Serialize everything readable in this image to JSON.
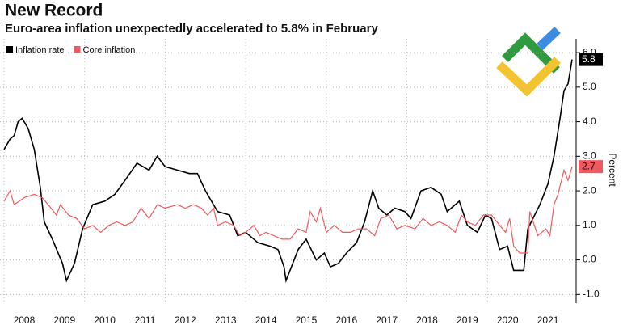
{
  "chart_data": {
    "type": "line",
    "title": "New Record",
    "subtitle": "Euro-area inflation unexpectedly accelerated to 5.8% in February",
    "y_label": "Percent",
    "xlim": [
      2007.9,
      2022.2
    ],
    "ylim": [
      -1.25,
      6.4
    ],
    "xticks": [
      {
        "value": 2008,
        "label": "2008"
      },
      {
        "value": 2009,
        "label": "2009"
      },
      {
        "value": 2010,
        "label": "2010"
      },
      {
        "value": 2011,
        "label": "2011"
      },
      {
        "value": 2012,
        "label": "2012"
      },
      {
        "value": 2013,
        "label": "2013"
      },
      {
        "value": 2014,
        "label": "2014"
      },
      {
        "value": 2015,
        "label": "2015"
      },
      {
        "value": 2016,
        "label": "2016"
      },
      {
        "value": 2017,
        "label": "2017"
      },
      {
        "value": 2018,
        "label": "2018"
      },
      {
        "value": 2019,
        "label": "2019"
      },
      {
        "value": 2020,
        "label": "2020"
      },
      {
        "value": 2021,
        "label": "2021"
      }
    ],
    "yticks": [
      {
        "value": 6,
        "label": "6.0"
      },
      {
        "value": 5,
        "label": "5.0"
      },
      {
        "value": 4,
        "label": "4.0"
      },
      {
        "value": 3,
        "label": "3.0"
      },
      {
        "value": 2,
        "label": "2.0"
      },
      {
        "value": 1,
        "label": "1.0"
      },
      {
        "value": 0,
        "label": "0.0"
      },
      {
        "value": -1,
        "label": "-1.0"
      }
    ],
    "grid": true,
    "legend": "top-left",
    "series": [
      {
        "name": "Inflation rate",
        "color": "#000000",
        "x": [
          2008.0,
          2008.15,
          2008.25,
          2008.35,
          2008.45,
          2008.6,
          2008.75,
          2008.9,
          2009.0,
          2009.2,
          2009.45,
          2009.55,
          2009.75,
          2009.95,
          2010.2,
          2010.5,
          2010.75,
          2011.0,
          2011.3,
          2011.6,
          2011.8,
          2012.0,
          2012.3,
          2012.6,
          2012.8,
          2013.0,
          2013.3,
          2013.6,
          2013.8,
          2014.0,
          2014.3,
          2014.6,
          2014.8,
          2014.95,
          2015.0,
          2015.3,
          2015.5,
          2015.75,
          2015.95,
          2016.1,
          2016.3,
          2016.5,
          2016.75,
          2016.95,
          2017.15,
          2017.3,
          2017.5,
          2017.7,
          2017.95,
          2018.1,
          2018.35,
          2018.6,
          2018.85,
          2019.0,
          2019.3,
          2019.5,
          2019.75,
          2019.95,
          2020.1,
          2020.3,
          2020.5,
          2020.65,
          2020.9,
          2021.0,
          2021.3,
          2021.5,
          2021.65,
          2021.8,
          2021.9,
          2022.0,
          2022.1
        ],
        "values": [
          3.2,
          3.5,
          3.6,
          4.0,
          4.1,
          3.8,
          3.2,
          2.1,
          1.1,
          0.6,
          -0.1,
          -0.6,
          -0.1,
          0.9,
          1.6,
          1.7,
          1.9,
          2.3,
          2.8,
          2.6,
          3.0,
          2.7,
          2.6,
          2.5,
          2.5,
          2.0,
          1.4,
          1.3,
          0.7,
          0.8,
          0.5,
          0.4,
          0.3,
          -0.2,
          -0.6,
          0.3,
          0.6,
          0.0,
          0.2,
          -0.2,
          -0.1,
          0.2,
          0.5,
          1.1,
          2.0,
          1.5,
          1.3,
          1.5,
          1.4,
          1.2,
          2.0,
          2.1,
          1.9,
          1.4,
          1.7,
          1.0,
          0.8,
          1.3,
          1.2,
          0.3,
          0.4,
          -0.3,
          -0.3,
          0.9,
          1.6,
          2.2,
          3.0,
          4.1,
          4.9,
          5.1,
          5.8
        ]
      },
      {
        "name": "Core inflation",
        "color": "#f0595f",
        "x": [
          2008.0,
          2008.15,
          2008.25,
          2008.5,
          2008.75,
          2008.95,
          2009.1,
          2009.3,
          2009.4,
          2009.6,
          2009.8,
          2010.0,
          2010.2,
          2010.4,
          2010.6,
          2010.8,
          2011.0,
          2011.2,
          2011.4,
          2011.6,
          2011.8,
          2012.0,
          2012.3,
          2012.5,
          2012.7,
          2012.9,
          2013.05,
          2013.2,
          2013.3,
          2013.5,
          2013.7,
          2013.85,
          2014.0,
          2014.2,
          2014.35,
          2014.5,
          2014.7,
          2014.9,
          2015.1,
          2015.3,
          2015.5,
          2015.6,
          2015.75,
          2015.85,
          2016.0,
          2016.2,
          2016.4,
          2016.6,
          2016.8,
          2017.0,
          2017.2,
          2017.35,
          2017.55,
          2017.75,
          2017.95,
          2018.2,
          2018.4,
          2018.6,
          2018.8,
          2019.0,
          2019.2,
          2019.35,
          2019.5,
          2019.7,
          2019.9,
          2020.1,
          2020.3,
          2020.45,
          2020.55,
          2020.65,
          2020.8,
          2021.0,
          2021.05,
          2021.25,
          2021.45,
          2021.55,
          2021.65,
          2021.75,
          2021.9,
          2022.0,
          2022.1
        ],
        "values": [
          1.7,
          2.0,
          1.6,
          1.8,
          1.9,
          1.8,
          1.6,
          1.3,
          1.6,
          1.3,
          1.2,
          0.9,
          1.0,
          0.8,
          1.0,
          1.1,
          1.0,
          1.1,
          1.5,
          1.2,
          1.6,
          1.5,
          1.6,
          1.5,
          1.6,
          1.5,
          1.3,
          1.5,
          1.0,
          1.1,
          1.0,
          0.7,
          0.8,
          1.0,
          0.7,
          0.8,
          0.7,
          0.6,
          0.6,
          0.9,
          0.8,
          1.4,
          1.1,
          1.5,
          0.8,
          1.0,
          0.8,
          0.8,
          0.9,
          0.9,
          0.7,
          1.2,
          1.3,
          0.9,
          1.0,
          0.9,
          1.2,
          1.0,
          1.1,
          1.0,
          0.8,
          1.3,
          1.1,
          1.0,
          1.3,
          1.3,
          1.0,
          0.8,
          1.2,
          0.4,
          0.2,
          0.2,
          1.4,
          0.7,
          0.9,
          0.7,
          1.6,
          1.9,
          2.6,
          2.3,
          2.7
        ]
      }
    ]
  }
}
